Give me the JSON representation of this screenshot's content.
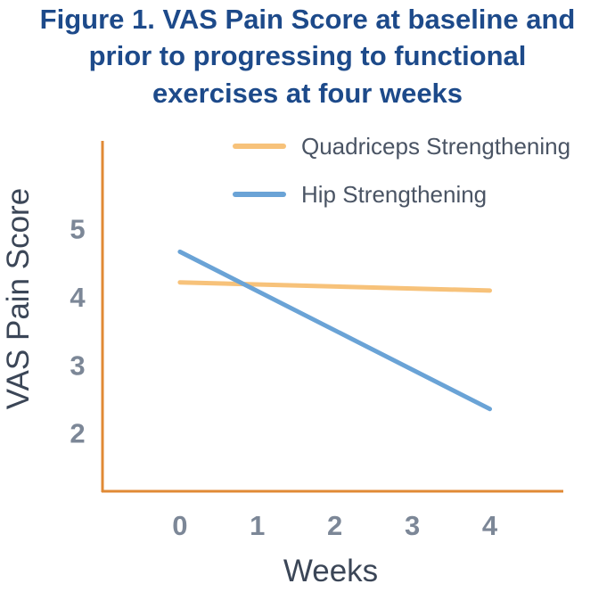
{
  "chart_data": {
    "type": "line",
    "title": [
      "Figure 1. VAS Pain Score at baseline and",
      "prior to progressing to functional",
      "exercises at four weeks"
    ],
    "xlabel": "Weeks",
    "ylabel": "VAS Pain Score",
    "x": [
      0,
      4
    ],
    "x_ticks": [
      "0",
      "1",
      "2",
      "3",
      "4"
    ],
    "y_ticks": [
      "2",
      "3",
      "4",
      "5"
    ],
    "xlim": [
      -1,
      4.95
    ],
    "ylim": [
      1.15,
      6.3
    ],
    "grid": false,
    "legend_position": "top-right",
    "axis_color": "#e08a35",
    "series": [
      {
        "name": "Quadriceps Strengthening",
        "values": [
          4.22,
          4.1
        ],
        "color": "#f7c27a"
      },
      {
        "name": "Hip Strengthening",
        "values": [
          4.67,
          2.36
        ],
        "color": "#6aa3d6"
      }
    ]
  }
}
